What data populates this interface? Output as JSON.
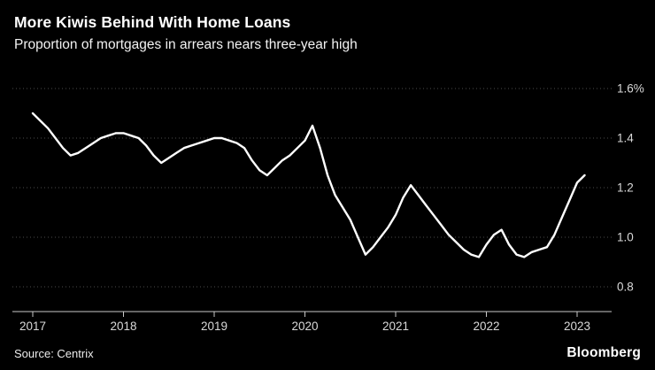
{
  "header": {
    "title": "More Kiwis Behind With Home Loans",
    "subtitle": "Proportion of mortgages in arrears nears three-year high"
  },
  "footer": {
    "source": "Source: Centrix",
    "logo": "Bloomberg"
  },
  "chart_data": {
    "type": "line",
    "title": "More Kiwis Behind With Home Loans",
    "subtitle": "Proportion of mortgages in arrears nears three-year high",
    "xlabel": "",
    "ylabel": "%",
    "ylim": [
      0.8,
      1.6
    ],
    "grid": "dotted-horizontal",
    "legend_position": "none",
    "line_color": "#ffffff",
    "background_color": "#000000",
    "x_ticks": [
      2017,
      2018,
      2019,
      2020,
      2021,
      2022,
      2023
    ],
    "y_ticks": [
      0.8,
      1.0,
      1.2,
      1.4,
      1.6
    ],
    "y_tick_labels": [
      "0.8",
      "1.0",
      "1.2",
      "1.4",
      "1.6%"
    ],
    "x": [
      2017.0,
      2017.083,
      2017.167,
      2017.25,
      2017.333,
      2017.417,
      2017.5,
      2017.583,
      2017.667,
      2017.75,
      2017.833,
      2017.917,
      2018.0,
      2018.083,
      2018.167,
      2018.25,
      2018.333,
      2018.417,
      2018.5,
      2018.583,
      2018.667,
      2018.75,
      2018.833,
      2018.917,
      2019.0,
      2019.083,
      2019.167,
      2019.25,
      2019.333,
      2019.417,
      2019.5,
      2019.583,
      2019.667,
      2019.75,
      2019.833,
      2019.917,
      2020.0,
      2020.083,
      2020.167,
      2020.25,
      2020.333,
      2020.417,
      2020.5,
      2020.583,
      2020.667,
      2020.75,
      2020.833,
      2020.917,
      2021.0,
      2021.083,
      2021.167,
      2021.25,
      2021.333,
      2021.417,
      2021.5,
      2021.583,
      2021.667,
      2021.75,
      2021.833,
      2021.917,
      2022.0,
      2022.083,
      2022.167,
      2022.25,
      2022.333,
      2022.417,
      2022.5,
      2022.583,
      2022.667,
      2022.75,
      2022.833,
      2022.917,
      2023.0,
      2023.083
    ],
    "values": [
      1.5,
      1.47,
      1.44,
      1.4,
      1.36,
      1.33,
      1.34,
      1.36,
      1.38,
      1.4,
      1.41,
      1.42,
      1.42,
      1.41,
      1.4,
      1.37,
      1.33,
      1.3,
      1.32,
      1.34,
      1.36,
      1.37,
      1.38,
      1.39,
      1.4,
      1.4,
      1.39,
      1.38,
      1.36,
      1.31,
      1.27,
      1.25,
      1.28,
      1.31,
      1.33,
      1.36,
      1.39,
      1.45,
      1.36,
      1.25,
      1.17,
      1.12,
      1.07,
      1.0,
      0.93,
      0.96,
      1.0,
      1.04,
      1.09,
      1.16,
      1.21,
      1.17,
      1.13,
      1.09,
      1.05,
      1.01,
      0.98,
      0.95,
      0.93,
      0.92,
      0.97,
      1.01,
      1.03,
      0.97,
      0.93,
      0.92,
      0.94,
      0.95,
      0.96,
      1.01,
      1.08,
      1.15,
      1.22,
      1.25
    ]
  }
}
